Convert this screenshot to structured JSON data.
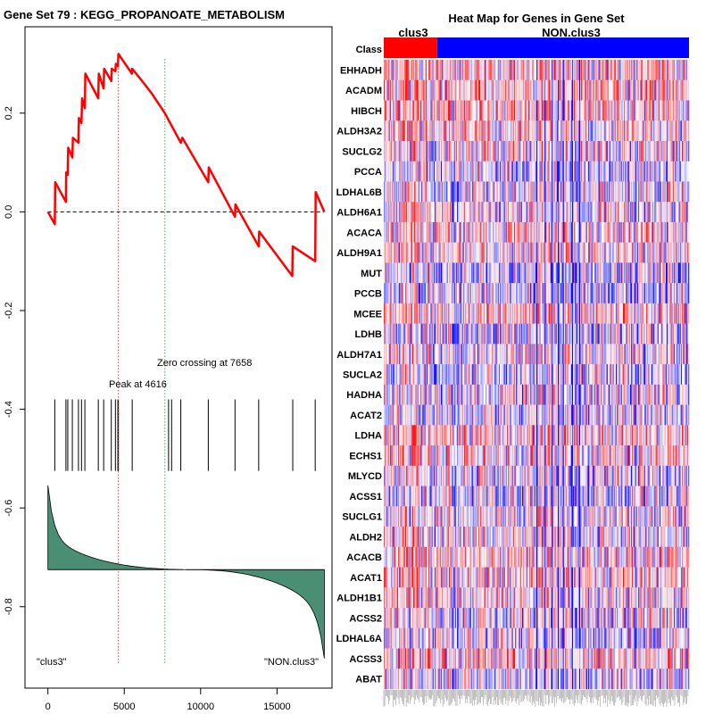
{
  "chart_data": [
    {
      "type": "line",
      "title": "Gene Set  79 : KEGG_PROPANOATE_METABOLISM",
      "xlabel": "",
      "ylabel": "",
      "xlim": [
        -1500,
        18600
      ],
      "ylim": [
        -0.965,
        0.375
      ],
      "x_ticks": [
        0,
        5000,
        10000,
        15000
      ],
      "x_tick_labels": [
        "0",
        "5000",
        "10000",
        "15000"
      ],
      "y_ticks": [
        0.2,
        0.0,
        -0.2,
        -0.4,
        -0.6,
        -0.8
      ],
      "y_tick_labels": [
        "0.2",
        "0.0",
        "-0.2",
        "-0.4",
        "-0.6",
        "-0.8"
      ],
      "enrichment_points": [
        [
          0,
          0.0
        ],
        [
          450,
          -0.025
        ],
        [
          480,
          0.06
        ],
        [
          1180,
          0.02
        ],
        [
          1200,
          0.08
        ],
        [
          1300,
          0.075
        ],
        [
          1330,
          0.13
        ],
        [
          1600,
          0.11
        ],
        [
          1640,
          0.15
        ],
        [
          2000,
          0.14
        ],
        [
          2030,
          0.19
        ],
        [
          2200,
          0.18
        ],
        [
          2240,
          0.23
        ],
        [
          2420,
          0.21
        ],
        [
          2450,
          0.28
        ],
        [
          3300,
          0.23
        ],
        [
          3330,
          0.28
        ],
        [
          3650,
          0.25
        ],
        [
          3680,
          0.29
        ],
        [
          4150,
          0.265
        ],
        [
          4180,
          0.29
        ],
        [
          4420,
          0.285
        ],
        [
          4450,
          0.3
        ],
        [
          4580,
          0.295
        ],
        [
          4616,
          0.32
        ],
        [
          5500,
          0.28
        ],
        [
          5520,
          0.29
        ],
        [
          6300,
          0.26
        ],
        [
          6800,
          0.24
        ],
        [
          7658,
          0.2
        ],
        [
          8700,
          0.14
        ],
        [
          8800,
          0.15
        ],
        [
          10500,
          0.06
        ],
        [
          10530,
          0.09
        ],
        [
          12250,
          -0.01
        ],
        [
          12280,
          0.015
        ],
        [
          13800,
          -0.07
        ],
        [
          13830,
          -0.04
        ],
        [
          16000,
          -0.13
        ],
        [
          16030,
          -0.07
        ],
        [
          17500,
          -0.1
        ],
        [
          17530,
          0.04
        ],
        [
          18100,
          0.0
        ]
      ],
      "reference_lines": [
        {
          "name": "zero",
          "y": 0.0,
          "color": "#000000",
          "style": "dashed"
        },
        {
          "name": "peak",
          "x": 4616,
          "color": "#e23636",
          "style": "dotted",
          "label": "Peak at 4616"
        },
        {
          "name": "zero-crossing",
          "x": 7658,
          "color": "#36b836",
          "style": "dotted",
          "label": "Zero crossing at 7658"
        }
      ],
      "hit_positions": [
        450,
        1180,
        1300,
        1600,
        2000,
        2200,
        2420,
        3300,
        3650,
        4150,
        4420,
        4580,
        4616,
        5520,
        7900,
        8100,
        8700,
        10500,
        12250,
        13800,
        16030,
        17500
      ],
      "hit_band_y": [
        -0.38,
        -0.525
      ],
      "metric_baseline_y": -0.725,
      "metric_top_y": -0.525,
      "metric_bottom_y": -0.905,
      "metric_fill_color": "#4a8f73",
      "enrichment_color": "#ff0000",
      "left_label": "\"clus3\"",
      "right_label": "\"NON.clus3\""
    },
    {
      "type": "heatmap",
      "title": "Heat Map for Genes in Gene Set",
      "class_row_label": "Class",
      "class_labels": [
        "clus3",
        "NON.clus3"
      ],
      "class_colors": [
        "#ff0000",
        "#0000ff"
      ],
      "class_split_fraction": 0.175,
      "columns": 300,
      "low_color": "#0000ff",
      "mid_color": "#ffffff",
      "high_color": "#ff0000",
      "genes": [
        "EHHADH",
        "ACADM",
        "HIBCH",
        "ALDH3A2",
        "SUCLG2",
        "PCCA",
        "LDHAL6B",
        "ALDH6A1",
        "ACACA",
        "ALDH9A1",
        "MUT",
        "PCCB",
        "MCEE",
        "LDHB",
        "ALDH7A1",
        "SUCLA2",
        "HADHA",
        "ACAT2",
        "LDHA",
        "ECHS1",
        "MLYCD",
        "ACSS1",
        "SUCLG1",
        "ALDH2",
        "ACACB",
        "ACAT1",
        "ALDH1B1",
        "ACSS2",
        "LDHAL6A",
        "ACSS3",
        "ABAT"
      ]
    }
  ]
}
